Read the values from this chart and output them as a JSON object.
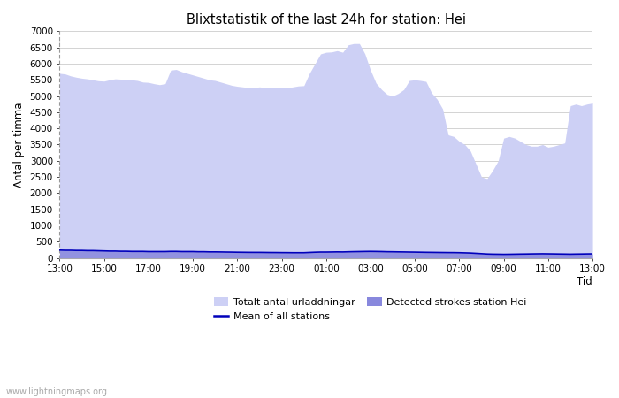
{
  "title": "Blixtstatistik of the last 24h for station: Hei",
  "xlabel": "Tid",
  "ylabel": "Antal per timma",
  "ylim": [
    0,
    7000
  ],
  "yticks": [
    0,
    500,
    1000,
    1500,
    2000,
    2500,
    3000,
    3500,
    4000,
    4500,
    5000,
    5500,
    6000,
    6500,
    7000
  ],
  "xtick_labels": [
    "13:00",
    "15:00",
    "17:00",
    "19:00",
    "21:00",
    "23:00",
    "01:00",
    "03:00",
    "05:00",
    "07:00",
    "09:00",
    "11:00",
    "13:00"
  ],
  "watermark": "www.lightningmaps.org",
  "color_total": "#cdd0f5",
  "color_station": "#8888dd",
  "color_mean": "#0000bb",
  "background_color": "#ffffff",
  "legend_total": "Totalt antal urladdningar",
  "legend_station": "Detected strokes station Hei",
  "legend_mean": "Mean of all stations",
  "x": [
    0,
    0.25,
    0.5,
    0.75,
    1,
    1.25,
    1.5,
    1.75,
    2,
    2.25,
    2.5,
    2.75,
    3,
    3.25,
    3.5,
    3.75,
    4,
    4.25,
    4.5,
    4.75,
    5,
    5.25,
    5.5,
    5.75,
    6,
    6.25,
    6.5,
    6.75,
    7,
    7.25,
    7.5,
    7.75,
    8,
    8.25,
    8.5,
    8.75,
    9,
    9.25,
    9.5,
    9.75,
    10,
    10.25,
    10.5,
    10.75,
    11,
    11.25,
    11.5,
    11.75,
    12,
    12.25,
    12.5,
    12.75,
    13,
    13.25,
    13.5,
    13.75,
    14,
    14.25,
    14.5,
    14.75,
    15,
    15.25,
    15.5,
    15.75,
    16,
    16.25,
    16.5,
    16.75,
    17,
    17.25,
    17.5,
    17.75,
    18,
    18.25,
    18.5,
    18.75,
    19,
    19.25,
    19.5,
    19.75,
    20,
    20.25,
    20.5,
    20.75,
    21,
    21.25,
    21.5,
    21.75,
    22,
    22.25,
    22.5,
    22.75,
    23,
    23.25,
    23.5,
    23.75,
    24
  ],
  "total": [
    5700,
    5680,
    5620,
    5580,
    5550,
    5530,
    5500,
    5470,
    5460,
    5500,
    5530,
    5520,
    5500,
    5500,
    5480,
    5430,
    5420,
    5380,
    5350,
    5380,
    5800,
    5820,
    5750,
    5700,
    5650,
    5600,
    5550,
    5500,
    5480,
    5430,
    5380,
    5330,
    5300,
    5280,
    5260,
    5260,
    5280,
    5260,
    5250,
    5260,
    5250,
    5250,
    5280,
    5310,
    5320,
    5700,
    6000,
    6300,
    6350,
    6360,
    6400,
    6350,
    6580,
    6620,
    6620,
    6300,
    5800,
    5400,
    5200,
    5050,
    5000,
    5080,
    5200,
    5480,
    5500,
    5480,
    5450,
    5100,
    4900,
    4600,
    3800,
    3750,
    3600,
    3500,
    3300,
    2900,
    2500,
    2450,
    2700,
    3000,
    3700,
    3750,
    3700,
    3600,
    3500,
    3450,
    3450,
    3500,
    3420,
    3450,
    3500,
    3550,
    4700,
    4750,
    4700,
    4750,
    4780,
    4800,
    4820,
    4750,
    4650
  ],
  "station": [
    240,
    235,
    235,
    230,
    230,
    225,
    225,
    220,
    215,
    210,
    210,
    205,
    205,
    200,
    200,
    200,
    195,
    195,
    195,
    195,
    200,
    200,
    195,
    195,
    195,
    190,
    190,
    185,
    185,
    183,
    180,
    178,
    175,
    173,
    171,
    170,
    170,
    168,
    166,
    165,
    163,
    162,
    160,
    160,
    160,
    168,
    175,
    180,
    180,
    182,
    185,
    183,
    188,
    192,
    195,
    198,
    200,
    198,
    195,
    190,
    188,
    185,
    183,
    180,
    178,
    175,
    172,
    170,
    168,
    166,
    164,
    163,
    160,
    155,
    150,
    140,
    130,
    120,
    115,
    113,
    110,
    112,
    115,
    118,
    120,
    123,
    125,
    127,
    125,
    123,
    120,
    118,
    115,
    118,
    120,
    123,
    125,
    128,
    130,
    132,
    130
  ],
  "mean_line": [
    240,
    235,
    235,
    230,
    230,
    225,
    225,
    220,
    215,
    210,
    210,
    205,
    205,
    200,
    200,
    200,
    195,
    195,
    195,
    195,
    200,
    200,
    195,
    195,
    195,
    190,
    190,
    185,
    185,
    183,
    180,
    178,
    175,
    173,
    171,
    170,
    170,
    168,
    166,
    165,
    163,
    162,
    160,
    160,
    160,
    168,
    175,
    180,
    180,
    182,
    185,
    183,
    188,
    192,
    195,
    198,
    200,
    198,
    195,
    190,
    188,
    185,
    183,
    180,
    178,
    175,
    172,
    170,
    168,
    166,
    164,
    163,
    160,
    155,
    150,
    140,
    130,
    120,
    115,
    113,
    110,
    112,
    115,
    118,
    120,
    123,
    125,
    127,
    125,
    123,
    120,
    118,
    115,
    118,
    120,
    123,
    125,
    128,
    130,
    132,
    130
  ]
}
